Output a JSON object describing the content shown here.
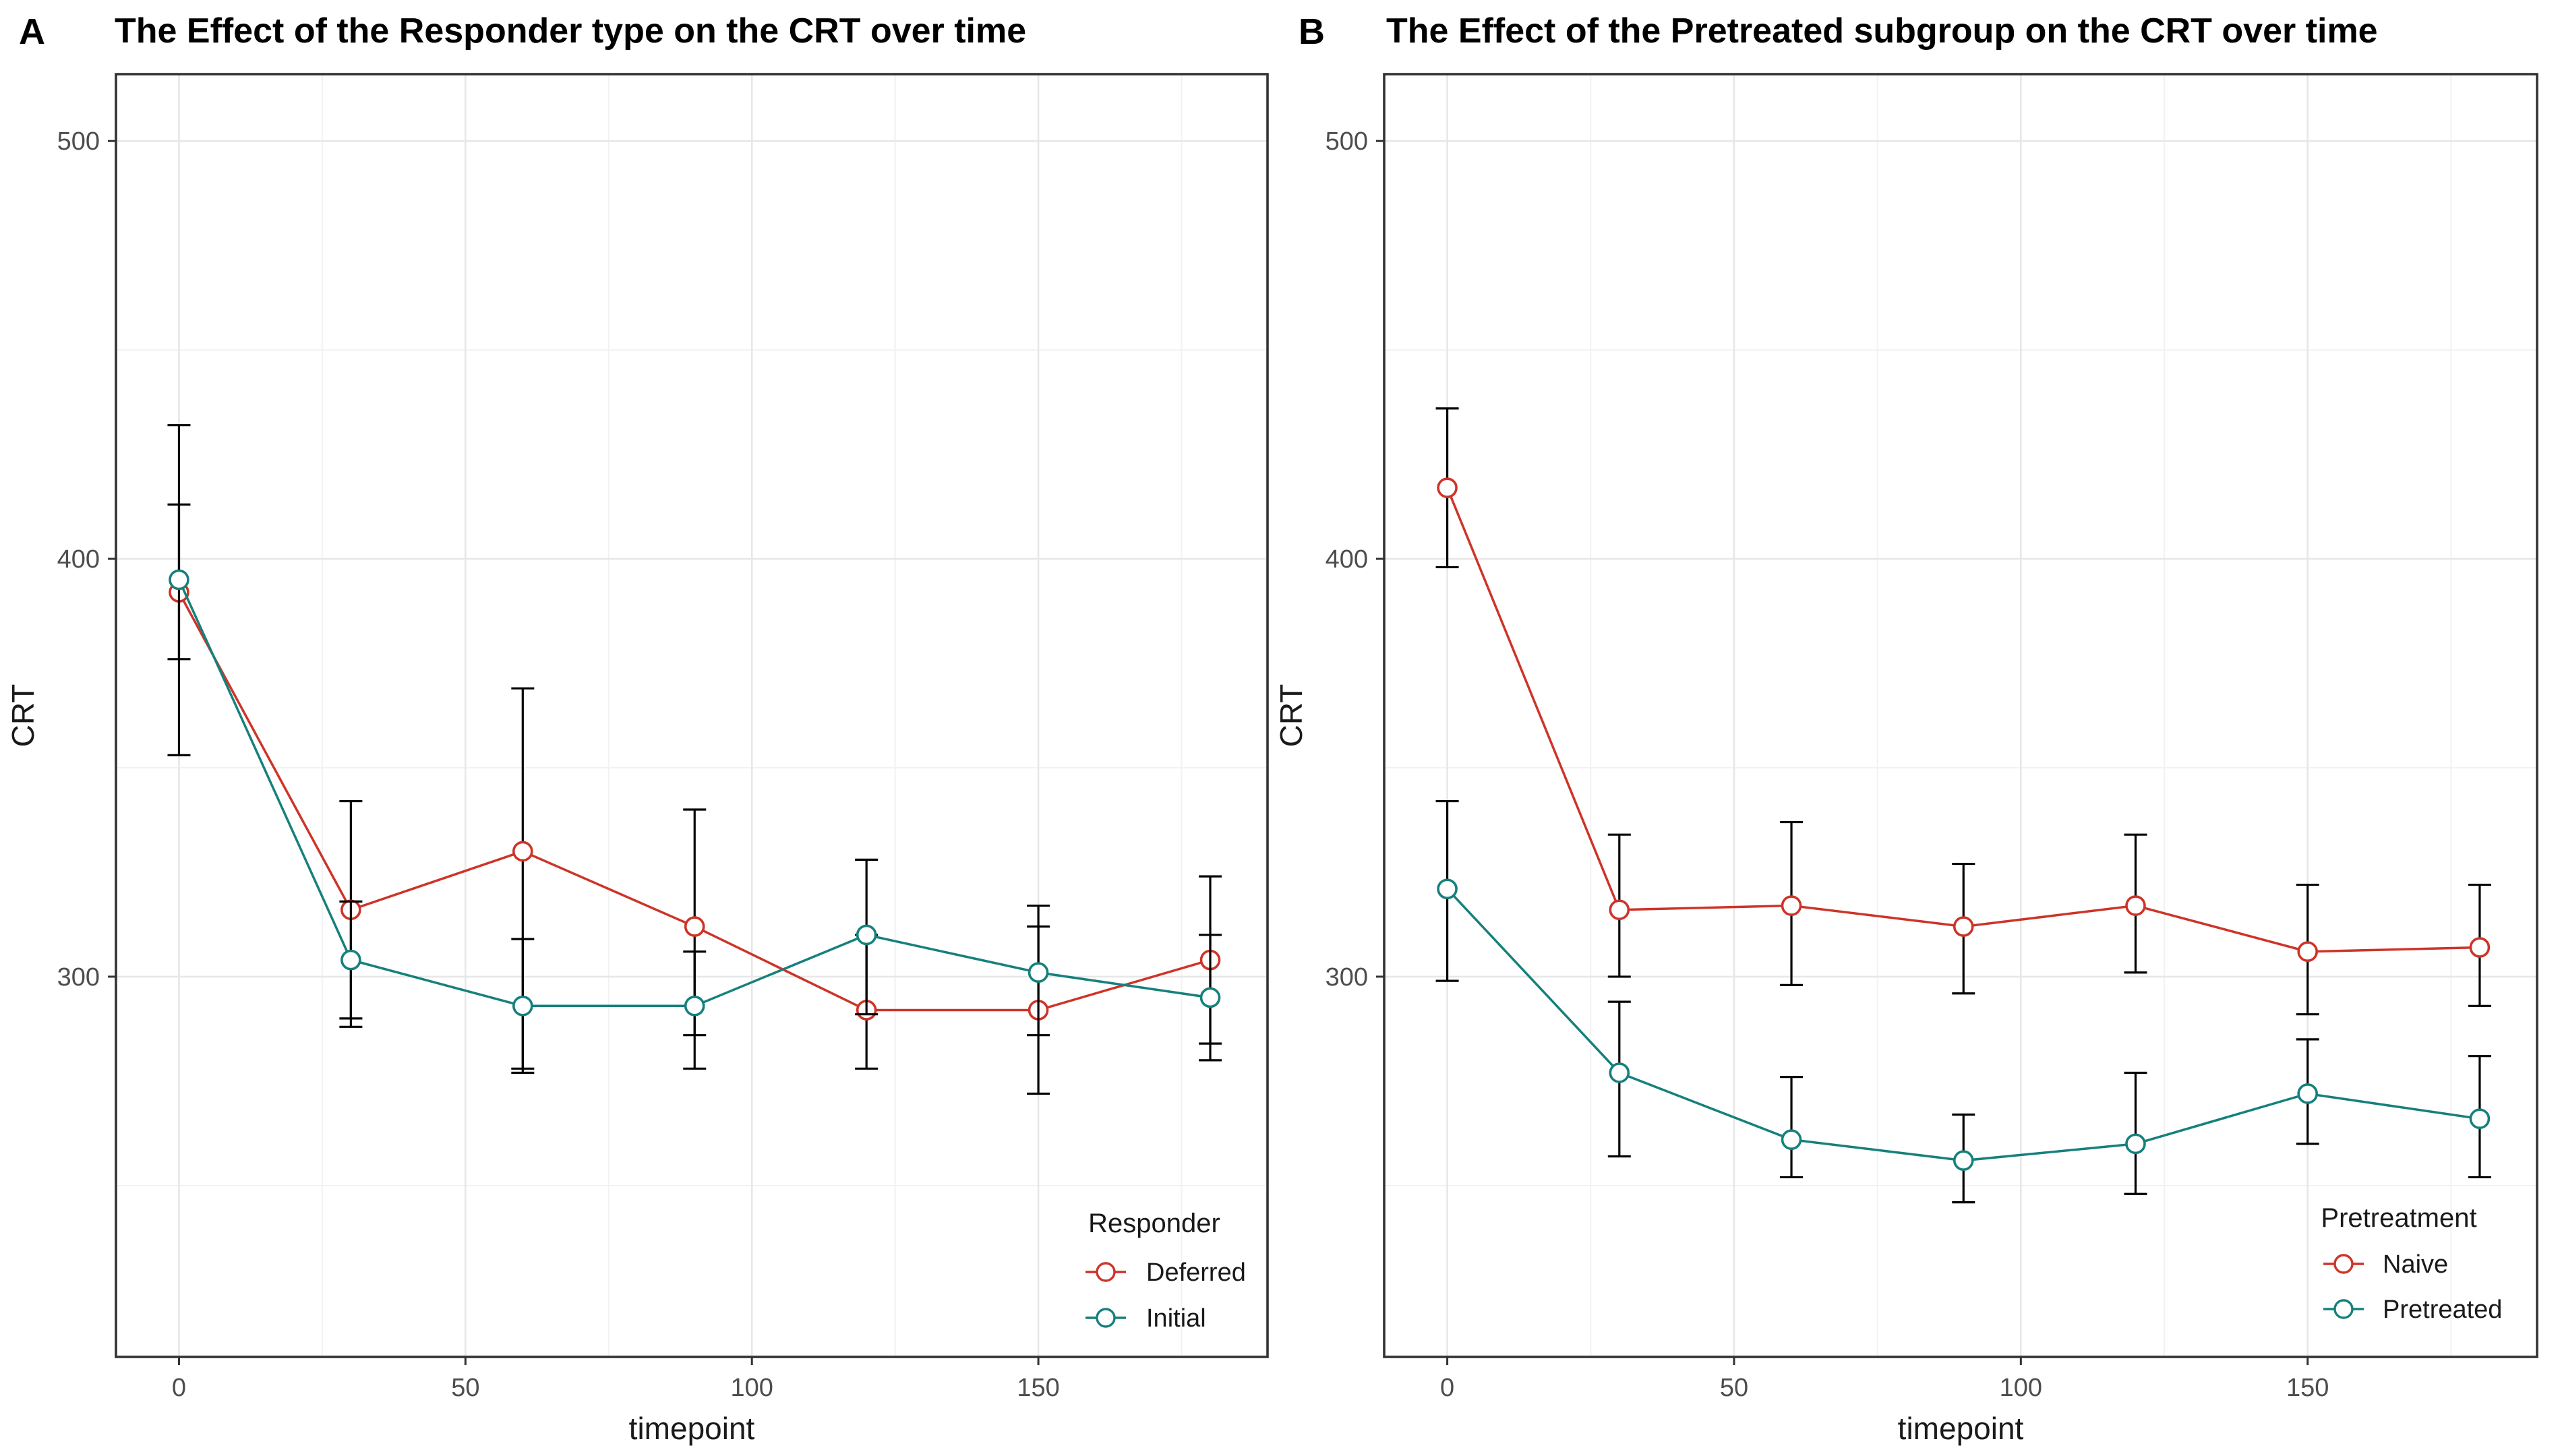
{
  "figure": {
    "background": "#ffffff",
    "panel_border_color": "#333333",
    "grid_major_color": "#e7e7e7",
    "grid_minor_color": "#f2f2f2",
    "tick_color": "#333333",
    "tick_label_color": "#4d4d4d",
    "axis_title_color": "#1a1a1a",
    "errorbar_color": "#000000",
    "point_fill": "#ffffff"
  },
  "chart_data": [
    {
      "type": "line",
      "panel_label": "A",
      "title": "The Effect of the Responder type on the CRT over time",
      "xlabel": "timepoint",
      "ylabel": "CRT",
      "xlim": [
        -11,
        190
      ],
      "ylim": [
        209,
        516
      ],
      "x_major_ticks": [
        0,
        50,
        100,
        150
      ],
      "x_minor_ticks": [
        25,
        75,
        125,
        175
      ],
      "y_major_ticks": [
        300,
        400,
        500
      ],
      "y_minor_ticks": [
        250,
        350,
        450
      ],
      "grid": true,
      "legend": {
        "title": "Responder",
        "position": "inside bottom-right"
      },
      "x": [
        0,
        30,
        60,
        90,
        120,
        150,
        180
      ],
      "series": [
        {
          "name": "Deferred",
          "color": "#cd3428",
          "values": [
            392,
            316,
            330,
            312,
            292,
            292,
            304
          ],
          "ci_low": [
            353,
            290,
            277,
            286,
            278,
            272,
            284
          ],
          "ci_high": [
            432,
            342,
            369,
            340,
            310,
            312,
            324
          ]
        },
        {
          "name": "Initial",
          "color": "#16807c",
          "values": [
            395,
            304,
            293,
            293,
            310,
            301,
            295
          ],
          "ci_low": [
            376,
            288,
            278,
            278,
            291,
            286,
            280
          ],
          "ci_high": [
            413,
            318,
            309,
            306,
            328,
            317,
            310
          ]
        }
      ]
    },
    {
      "type": "line",
      "panel_label": "B",
      "title": "The Effect of the Pretreated subgroup on the CRT over time",
      "xlabel": "timepoint",
      "ylabel": "CRT",
      "xlim": [
        -11,
        190
      ],
      "ylim": [
        209,
        516
      ],
      "x_major_ticks": [
        0,
        50,
        100,
        150
      ],
      "x_minor_ticks": [
        25,
        75,
        125,
        175
      ],
      "y_major_ticks": [
        300,
        400,
        500
      ],
      "y_minor_ticks": [
        250,
        350,
        450
      ],
      "grid": true,
      "legend": {
        "title": "Pretreatment",
        "position": "inside bottom-right"
      },
      "x": [
        0,
        30,
        60,
        90,
        120,
        150,
        180
      ],
      "series": [
        {
          "name": "Naive",
          "color": "#cd3428",
          "values": [
            417,
            316,
            317,
            312,
            317,
            306,
            307
          ],
          "ci_low": [
            398,
            300,
            298,
            296,
            301,
            291,
            293
          ],
          "ci_high": [
            436,
            334,
            337,
            327,
            334,
            322,
            322
          ]
        },
        {
          "name": "Pretreated",
          "color": "#16807c",
          "values": [
            321,
            277,
            261,
            256,
            260,
            272,
            266
          ],
          "ci_low": [
            299,
            257,
            252,
            246,
            248,
            260,
            252
          ],
          "ci_high": [
            342,
            294,
            276,
            267,
            277,
            285,
            281
          ]
        }
      ]
    }
  ]
}
